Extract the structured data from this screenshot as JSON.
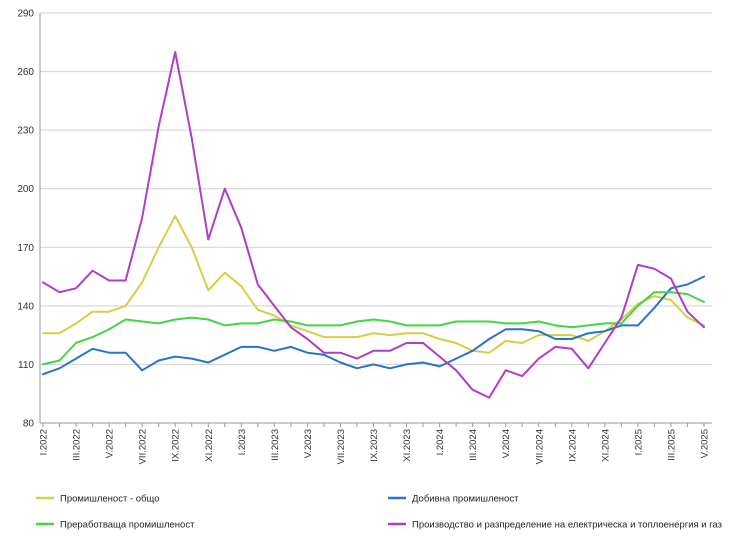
{
  "chart_data": {
    "type": "line",
    "title": "",
    "xlabel": "",
    "ylabel": "",
    "ylim": [
      80,
      290
    ],
    "yticks": [
      80,
      110,
      140,
      170,
      200,
      230,
      260,
      290
    ],
    "grid": "horizontal",
    "legend_position": "bottom",
    "x_labels": [
      "I.2022",
      "",
      "III.2022",
      "",
      "V.2022",
      "",
      "VII.2022",
      "",
      "IX.2022",
      "",
      "XI.2022",
      "",
      "I.2023",
      "",
      "III.2023",
      "",
      "V.2023",
      "",
      "VII.2023",
      "",
      "IX.2023",
      "",
      "XI.2023",
      "",
      "I.2024",
      "",
      "III.2024",
      "",
      "V.2024",
      "",
      "VII.2024",
      "",
      "IX.2024",
      "",
      "XI.2024",
      "",
      "I.2025",
      "",
      "III.2025",
      "",
      "V.2025"
    ],
    "series": [
      {
        "name": "Промишленост - общо",
        "color": "#d4cf45",
        "values": [
          126,
          126,
          131,
          137,
          137,
          140,
          152,
          170,
          186,
          170,
          148,
          157,
          150,
          138,
          135,
          130,
          127,
          124,
          124,
          124,
          126,
          125,
          126,
          126,
          123,
          121,
          117,
          116,
          122,
          121,
          125,
          125,
          125,
          122,
          127,
          133,
          141,
          145,
          143,
          134,
          130
        ]
      },
      {
        "name": "Добивна промишленост",
        "color": "#2874c8",
        "values": [
          105,
          108,
          113,
          118,
          116,
          116,
          107,
          112,
          114,
          113,
          111,
          115,
          119,
          119,
          117,
          119,
          116,
          115,
          111,
          108,
          110,
          108,
          110,
          111,
          109,
          113,
          117,
          123,
          128,
          128,
          127,
          123,
          123,
          126,
          127,
          130,
          130,
          139,
          149,
          151,
          155
        ]
      },
      {
        "name": "Преработваща промишленост",
        "color": "#45d445",
        "values": [
          110,
          112,
          121,
          124,
          128,
          133,
          132,
          131,
          133,
          134,
          133,
          130,
          131,
          131,
          133,
          132,
          130,
          130,
          130,
          132,
          133,
          132,
          130,
          130,
          130,
          132,
          132,
          132,
          131,
          131,
          132,
          130,
          129,
          130,
          131,
          131,
          140,
          147,
          147,
          146,
          142
        ]
      },
      {
        "name": "Производство и разпределение на електрическа и топлоенергия и газ",
        "color": "#b03ec4",
        "values": [
          152,
          147,
          149,
          158,
          153,
          153,
          185,
          232,
          270,
          226,
          174,
          200,
          180,
          151,
          140,
          129,
          123,
          116,
          116,
          113,
          117,
          117,
          121,
          121,
          114,
          107,
          97,
          93,
          107,
          104,
          113,
          119,
          118,
          108,
          121,
          134,
          161,
          159,
          154,
          137,
          129
        ]
      }
    ]
  }
}
